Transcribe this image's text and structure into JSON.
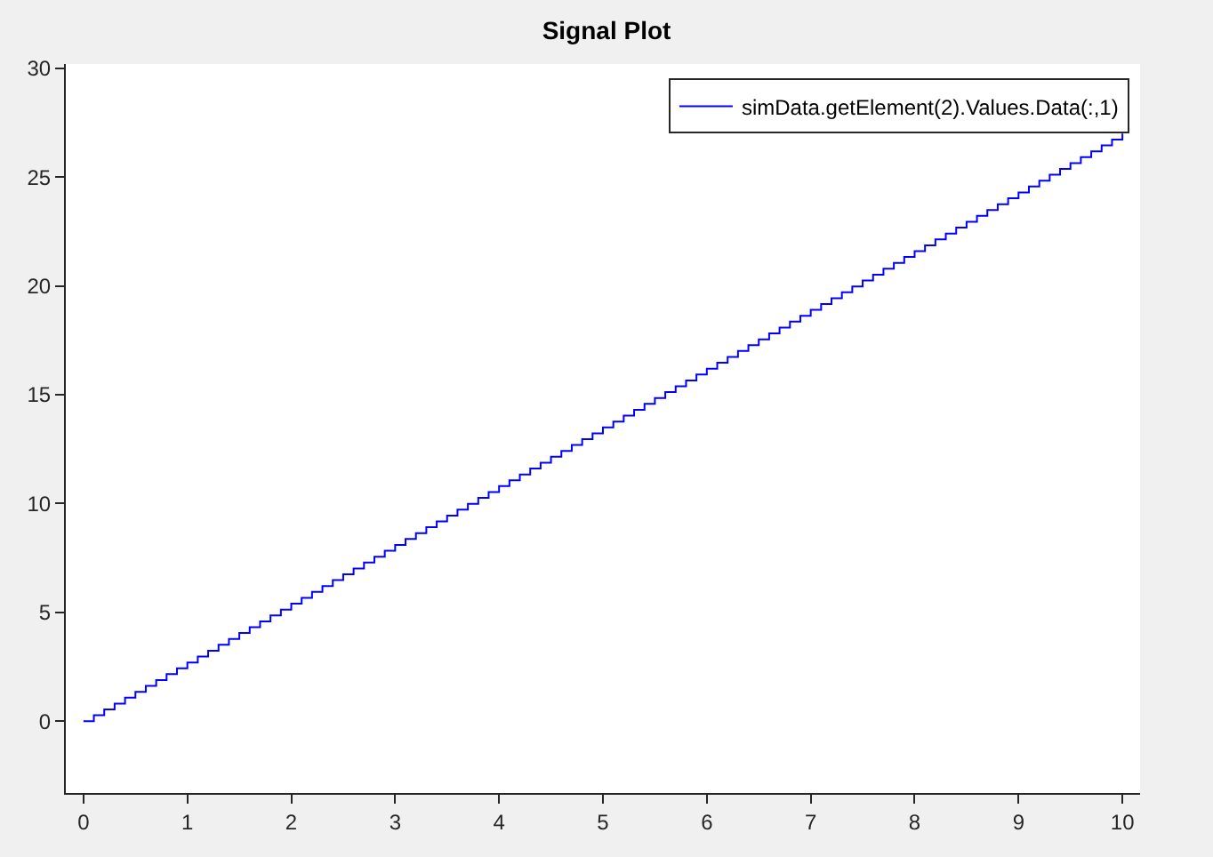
{
  "chart_data": {
    "type": "step",
    "title": "Signal Plot",
    "x": [
      0,
      0.1,
      0.2,
      0.3,
      0.4,
      0.5,
      0.6,
      0.7,
      0.8,
      0.9,
      1,
      1.1,
      1.2,
      1.3,
      1.4,
      1.5,
      1.6,
      1.7,
      1.8,
      1.9,
      2,
      2.1,
      2.2,
      2.3,
      2.4,
      2.5,
      2.6,
      2.7,
      2.8,
      2.9,
      3,
      3.1,
      3.2,
      3.3,
      3.4,
      3.5,
      3.6,
      3.7,
      3.8,
      3.9,
      4,
      4.1,
      4.2,
      4.3,
      4.4,
      4.5,
      4.6,
      4.7,
      4.8,
      4.9,
      5,
      5.1,
      5.2,
      5.3,
      5.4,
      5.5,
      5.6,
      5.7,
      5.8,
      5.9,
      6,
      6.1,
      6.2,
      6.3,
      6.4,
      6.5,
      6.6,
      6.7,
      6.8,
      6.9,
      7,
      7.1,
      7.2,
      7.3,
      7.4,
      7.5,
      7.6,
      7.7,
      7.8,
      7.9,
      8,
      8.1,
      8.2,
      8.3,
      8.4,
      8.5,
      8.6,
      8.7,
      8.8,
      8.9,
      9,
      9.1,
      9.2,
      9.3,
      9.4,
      9.5,
      9.6,
      9.7,
      9.8,
      9.9,
      10
    ],
    "series": [
      {
        "name": "simData.getElement(2).Values.Data(:,1)",
        "color": "#0000ff",
        "values": [
          0,
          0.27,
          0.54,
          0.81,
          1.08,
          1.35,
          1.62,
          1.89,
          2.16,
          2.43,
          2.7,
          2.97,
          3.24,
          3.51,
          3.78,
          4.05,
          4.32,
          4.59,
          4.86,
          5.13,
          5.4,
          5.67,
          5.94,
          6.21,
          6.48,
          6.75,
          7.02,
          7.29,
          7.56,
          7.83,
          8.1,
          8.37,
          8.64,
          8.91,
          9.18,
          9.45,
          9.72,
          9.99,
          10.26,
          10.53,
          10.8,
          11.07,
          11.34,
          11.61,
          11.88,
          12.15,
          12.42,
          12.69,
          12.96,
          13.23,
          13.5,
          13.77,
          14.04,
          14.31,
          14.58,
          14.85,
          15.12,
          15.39,
          15.66,
          15.93,
          16.2,
          16.47,
          16.74,
          17.01,
          17.28,
          17.55,
          17.82,
          18.09,
          18.36,
          18.63,
          18.9,
          19.17,
          19.44,
          19.71,
          19.98,
          20.25,
          20.52,
          20.79,
          21.06,
          21.33,
          21.6,
          21.87,
          22.14,
          22.41,
          22.68,
          22.95,
          23.22,
          23.49,
          23.76,
          24.03,
          24.3,
          24.57,
          24.84,
          25.11,
          25.38,
          25.65,
          25.92,
          26.19,
          26.46,
          26.73,
          27.0
        ]
      }
    ],
    "xlim": [
      -0.17,
      10.17
    ],
    "xticks": [
      0,
      1,
      2,
      3,
      4,
      5,
      6,
      7,
      8,
      9,
      10
    ],
    "ylim": [
      -3.3,
      30.2
    ],
    "yticks": [
      0,
      5,
      10,
      15,
      20,
      25,
      30
    ],
    "legend": "top right",
    "marker": "none",
    "line_style": "solid"
  }
}
